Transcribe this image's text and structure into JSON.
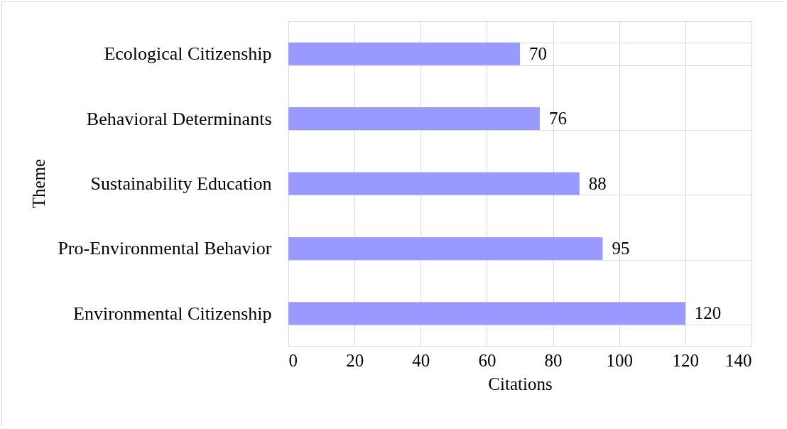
{
  "chart_data": {
    "type": "bar",
    "orientation": "horizontal",
    "xlabel": "Citations",
    "ylabel": "Theme",
    "categories": [
      "Ecological Citizenship",
      "Behavioral Determinants",
      "Sustainability Education",
      "Pro-Environmental Behavior",
      "Environmental Citizenship"
    ],
    "values": [
      70,
      76,
      88,
      95,
      120
    ],
    "color": "#9999ff",
    "xlim": [
      0,
      140
    ],
    "xticks": [
      0,
      20,
      40,
      60,
      80,
      100,
      120,
      140
    ],
    "grid": true,
    "data_labels": true
  }
}
